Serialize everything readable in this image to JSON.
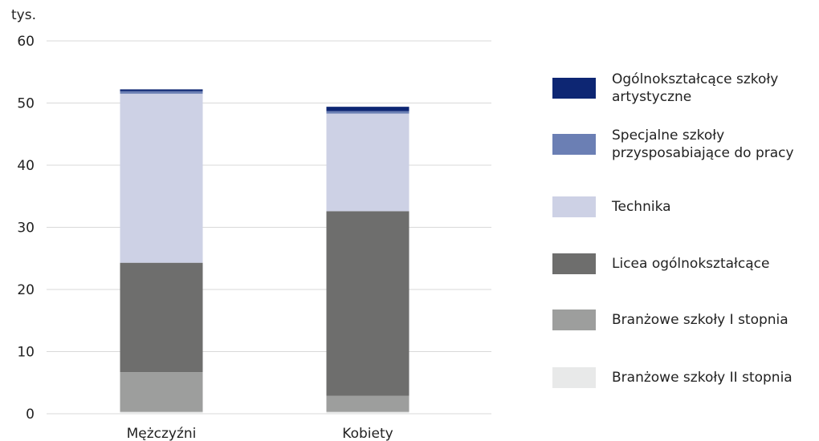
{
  "chart_data": {
    "type": "bar",
    "stacked": true,
    "unit_label": "tys.",
    "categories": [
      "Mężczyźni",
      "Kobiety"
    ],
    "ylim": [
      0,
      60
    ],
    "yticks": [
      0,
      10,
      20,
      30,
      40,
      50,
      60
    ],
    "grid": true,
    "legend_position": "right",
    "series": [
      {
        "name": "Branżowe szkoły II stopnia",
        "color": "#e8e9e9",
        "values": [
          0.3,
          0.3
        ]
      },
      {
        "name": "Branżowe szkoły I stopnia",
        "color": "#9d9e9d",
        "values": [
          6.4,
          2.6
        ]
      },
      {
        "name": "Licea ogólnokształcące",
        "color": "#6e6e6d",
        "values": [
          17.6,
          29.7
        ]
      },
      {
        "name": "Technika",
        "color": "#cdd1e5",
        "values": [
          27.2,
          15.7
        ]
      },
      {
        "name": "Specjalne szkoły przysposabiające do pracy",
        "color": "#6b7fb4",
        "values": [
          0.4,
          0.4
        ]
      },
      {
        "name": "Ogólnokształcące szkoły artystyczne",
        "color": "#0d2673",
        "values": [
          0.3,
          0.7
        ]
      }
    ]
  }
}
